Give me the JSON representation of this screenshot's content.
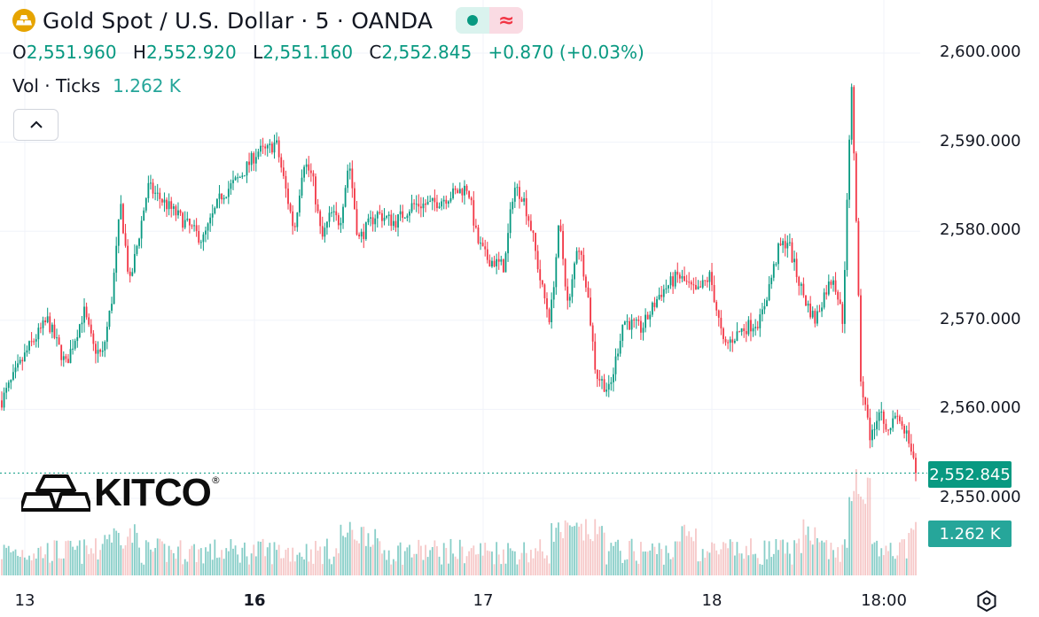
{
  "header": {
    "title": "Gold Spot / U.S. Dollar · 5 · OANDA",
    "delayed_symbol": "≈"
  },
  "ohlc": {
    "o_label": "O",
    "o": "2,551.960",
    "h_label": "H",
    "h": "2,552.920",
    "l_label": "L",
    "l": "2,551.160",
    "c_label": "C",
    "c": "2,552.845",
    "change": "+0.870 (+0.03%)"
  },
  "volume": {
    "label": "Vol · Ticks",
    "value": "1.262 K"
  },
  "logo": {
    "text": "KITCO",
    "reg": "®"
  },
  "colors": {
    "up": "#089981",
    "down": "#f23645",
    "vol_up": "#26a69a",
    "vol_down": "#ef9a9a",
    "price_line": "#089981",
    "icon_gold": "#e6a400"
  },
  "chart_data": {
    "type": "candlestick",
    "interval": "5 minutes",
    "ylim": [
      2547,
      2604
    ],
    "y_ticks": [
      "2,600.000",
      "2,590.000",
      "2,580.000",
      "2,570.000",
      "2,560.000",
      "2,550.000"
    ],
    "y_tick_values": [
      2600,
      2590,
      2580,
      2570,
      2560,
      2550
    ],
    "x_ticks": [
      {
        "label": "13",
        "bold": false
      },
      {
        "label": "16",
        "bold": true
      },
      {
        "label": "17",
        "bold": false
      },
      {
        "label": "18",
        "bold": false
      },
      {
        "label": "18:00",
        "bold": false
      }
    ],
    "last_price": 2552.845,
    "last_price_label": "2,552.845",
    "last_volume_label": "1.262 K",
    "grid": true,
    "price_path": [
      [
        0,
        2561
      ],
      [
        0.03,
        2567
      ],
      [
        0.05,
        2570
      ],
      [
        0.07,
        2565
      ],
      [
        0.09,
        2571
      ],
      [
        0.1,
        2567
      ],
      [
        0.11,
        2566
      ],
      [
        0.12,
        2572
      ],
      [
        0.13,
        2583
      ],
      [
        0.14,
        2574
      ],
      [
        0.16,
        2585
      ],
      [
        0.18,
        2583
      ],
      [
        0.2,
        2581
      ],
      [
        0.22,
        2579
      ],
      [
        0.24,
        2584
      ],
      [
        0.26,
        2586
      ],
      [
        0.28,
        2589
      ],
      [
        0.29,
        2589
      ],
      [
        0.3,
        2590
      ],
      [
        0.31,
        2585
      ],
      [
        0.32,
        2580
      ],
      [
        0.33,
        2588
      ],
      [
        0.34,
        2586
      ],
      [
        0.35,
        2579
      ],
      [
        0.36,
        2582
      ],
      [
        0.37,
        2581
      ],
      [
        0.38,
        2588
      ],
      [
        0.39,
        2579
      ],
      [
        0.41,
        2582
      ],
      [
        0.43,
        2581
      ],
      [
        0.45,
        2583
      ],
      [
        0.47,
        2583
      ],
      [
        0.49,
        2584
      ],
      [
        0.51,
        2585
      ],
      [
        0.52,
        2579
      ],
      [
        0.53,
        2577
      ],
      [
        0.55,
        2576
      ],
      [
        0.56,
        2585
      ],
      [
        0.57,
        2584
      ],
      [
        0.58,
        2580
      ],
      [
        0.59,
        2574
      ],
      [
        0.6,
        2570
      ],
      [
        0.61,
        2581
      ],
      [
        0.62,
        2571
      ],
      [
        0.63,
        2579
      ],
      [
        0.64,
        2574
      ],
      [
        0.65,
        2564
      ],
      [
        0.665,
        2562
      ],
      [
        0.68,
        2570
      ],
      [
        0.7,
        2569
      ],
      [
        0.72,
        2573
      ],
      [
        0.74,
        2575
      ],
      [
        0.76,
        2573
      ],
      [
        0.775,
        2575
      ],
      [
        0.79,
        2567
      ],
      [
        0.81,
        2569
      ],
      [
        0.83,
        2570
      ],
      [
        0.85,
        2578
      ],
      [
        0.86,
        2579
      ],
      [
        0.87,
        2575
      ],
      [
        0.88,
        2572
      ],
      [
        0.89,
        2570
      ],
      [
        0.9,
        2573
      ],
      [
        0.91,
        2575
      ],
      [
        0.92,
        2570
      ],
      [
        0.93,
        2597
      ],
      [
        0.94,
        2563
      ],
      [
        0.95,
        2557
      ],
      [
        0.96,
        2560
      ],
      [
        0.97,
        2558
      ],
      [
        0.98,
        2559
      ],
      [
        0.99,
        2557
      ],
      [
        1.0,
        2552.845
      ]
    ]
  }
}
